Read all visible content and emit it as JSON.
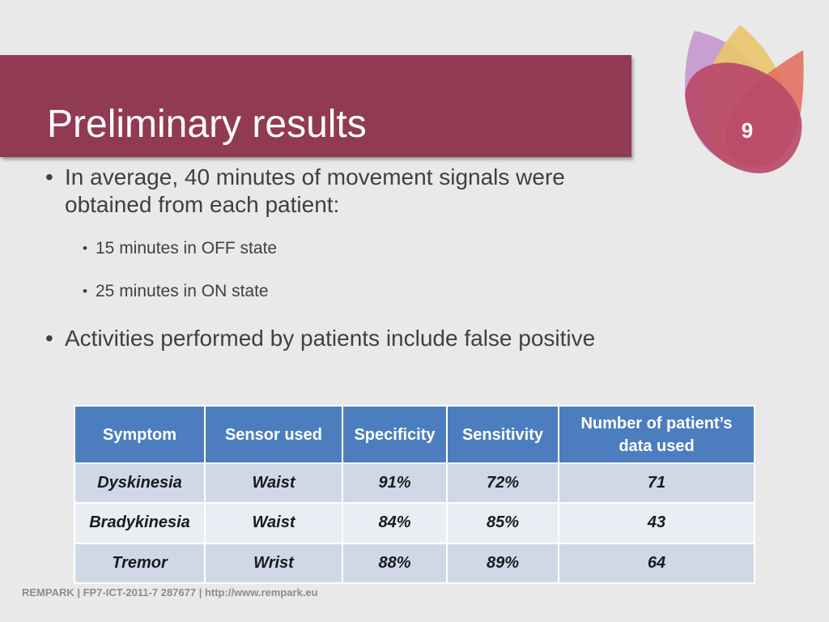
{
  "slide": {
    "title": "Preliminary results",
    "number": "9"
  },
  "bullets": [
    {
      "text": "In average, 40 minutes of movement signals were obtained from each patient:",
      "sub": [
        "15 minutes in OFF state",
        "25 minutes in ON state"
      ]
    },
    {
      "text": "Activities performed by patients include false positive",
      "sub": []
    }
  ],
  "table": {
    "headers": [
      "Symptom",
      "Sensor used",
      "Specificity",
      "Sensitivity",
      "Number of patient’s data used"
    ],
    "rows": [
      [
        "Dyskinesia",
        "Waist",
        "91%",
        "72%",
        "71"
      ],
      [
        "Bradykinesia",
        "Waist",
        "84%",
        "85%",
        "43"
      ],
      [
        "Tremor",
        "Wrist",
        "88%",
        "89%",
        "64"
      ]
    ]
  },
  "footer": "REMPARK | FP7-ICT-2011-7  287677 | http://www.rempark.eu",
  "colors": {
    "title_band": "#913a53",
    "table_header": "#4c7ebf",
    "row_odd": "#d0d8e8",
    "row_even": "#e9edf4",
    "background": "#e9e9e9"
  }
}
